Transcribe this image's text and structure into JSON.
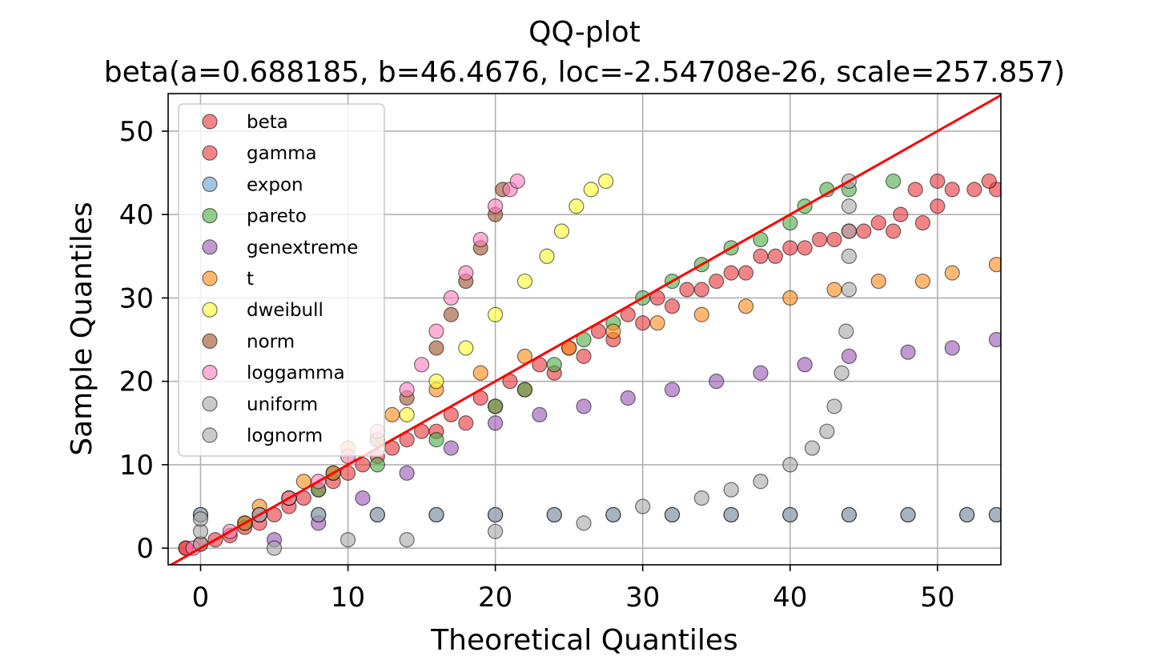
{
  "chart_data": {
    "type": "scatter",
    "title": "QQ-plot",
    "subtitle": "beta(a=0.688185, b=46.4676, loc=-2.54708e-26, scale=257.857)",
    "xlabel": "Theoretical Quantiles",
    "ylabel": "Sample Quantiles",
    "xlim": [
      -2.2,
      54.3
    ],
    "ylim": [
      -2,
      54.5
    ],
    "xticks": [
      0,
      10,
      20,
      30,
      40,
      50
    ],
    "yticks": [
      0,
      10,
      20,
      30,
      40,
      50
    ],
    "xtick_labels": [
      "0",
      "10",
      "20",
      "30",
      "40",
      "50"
    ],
    "ytick_labels": [
      "0",
      "10",
      "20",
      "30",
      "40",
      "50"
    ],
    "grid": true,
    "legend_position": "top-left",
    "reference_line": {
      "color": "#ff0000",
      "points": [
        [
          -2.2,
          -2.2
        ],
        [
          54.3,
          54.3
        ]
      ]
    },
    "series": [
      {
        "name": "beta",
        "color": "#e8383d",
        "points": [
          [
            -1,
            0
          ],
          [
            0,
            0.5
          ],
          [
            2,
            1.5
          ],
          [
            4,
            3
          ],
          [
            6,
            5
          ],
          [
            8,
            7
          ],
          [
            10,
            9
          ],
          [
            12,
            11
          ],
          [
            14,
            13
          ],
          [
            16,
            14
          ],
          [
            18,
            15
          ],
          [
            20,
            17
          ],
          [
            22,
            19
          ],
          [
            24,
            21
          ],
          [
            26,
            23
          ],
          [
            28,
            25
          ],
          [
            30,
            27
          ],
          [
            32,
            29
          ],
          [
            34,
            31
          ],
          [
            36,
            33
          ],
          [
            38,
            35
          ],
          [
            40,
            36
          ],
          [
            42,
            37
          ],
          [
            44,
            38
          ],
          [
            46,
            39
          ],
          [
            47.5,
            40
          ],
          [
            48.5,
            43
          ],
          [
            50,
            41
          ],
          [
            51,
            43
          ],
          [
            52.5,
            43
          ],
          [
            54,
            43
          ]
        ]
      },
      {
        "name": "gamma",
        "color": "#e8383d",
        "points": [
          [
            -1,
            0
          ],
          [
            1,
            1
          ],
          [
            3,
            2.5
          ],
          [
            5,
            4
          ],
          [
            7,
            6
          ],
          [
            9,
            8
          ],
          [
            11,
            10
          ],
          [
            13,
            12
          ],
          [
            15,
            14
          ],
          [
            17,
            16
          ],
          [
            19,
            18
          ],
          [
            21,
            20
          ],
          [
            23,
            22
          ],
          [
            25,
            24
          ],
          [
            27,
            26
          ],
          [
            29,
            28
          ],
          [
            31,
            30
          ],
          [
            33,
            31
          ],
          [
            35,
            32
          ],
          [
            37,
            33
          ],
          [
            39,
            35
          ],
          [
            41,
            36
          ],
          [
            43,
            37
          ],
          [
            45,
            38
          ],
          [
            47,
            38
          ],
          [
            49,
            39
          ],
          [
            50,
            44
          ],
          [
            53.5,
            44
          ]
        ]
      },
      {
        "name": "expon",
        "color": "#6a9fd4",
        "points": [
          [
            0,
            4
          ],
          [
            4,
            4
          ],
          [
            8,
            4
          ],
          [
            12,
            4
          ],
          [
            16,
            4
          ],
          [
            20,
            4
          ],
          [
            24,
            4
          ],
          [
            28,
            4
          ],
          [
            32,
            4
          ],
          [
            36,
            4
          ],
          [
            40,
            4
          ],
          [
            44,
            4
          ],
          [
            48,
            4
          ],
          [
            52,
            4
          ],
          [
            54,
            4
          ]
        ]
      },
      {
        "name": "pareto",
        "color": "#4daf4a",
        "points": [
          [
            4,
            4
          ],
          [
            8,
            7
          ],
          [
            12,
            10
          ],
          [
            16,
            13
          ],
          [
            20,
            17
          ],
          [
            22,
            19
          ],
          [
            24,
            22
          ],
          [
            26,
            25
          ],
          [
            28,
            27
          ],
          [
            30,
            30
          ],
          [
            32,
            32
          ],
          [
            34,
            34
          ],
          [
            36,
            36
          ],
          [
            38,
            37
          ],
          [
            40,
            39
          ],
          [
            41,
            41
          ],
          [
            42.5,
            43
          ],
          [
            44,
            43
          ],
          [
            47,
            44
          ]
        ]
      },
      {
        "name": "genextreme",
        "color": "#9b59b6",
        "points": [
          [
            5,
            1
          ],
          [
            8,
            3
          ],
          [
            11,
            6
          ],
          [
            14,
            9
          ],
          [
            17,
            12
          ],
          [
            20,
            15
          ],
          [
            23,
            16
          ],
          [
            26,
            17
          ],
          [
            29,
            18
          ],
          [
            32,
            19
          ],
          [
            35,
            20
          ],
          [
            38,
            21
          ],
          [
            41,
            22
          ],
          [
            44,
            23
          ],
          [
            48,
            23.5
          ],
          [
            51,
            24
          ],
          [
            54,
            25
          ]
        ]
      },
      {
        "name": "t",
        "color": "#ff8c1a",
        "points": [
          [
            4,
            5
          ],
          [
            7,
            8
          ],
          [
            10,
            12
          ],
          [
            13,
            16
          ],
          [
            16,
            19
          ],
          [
            19,
            21
          ],
          [
            22,
            23
          ],
          [
            25,
            24
          ],
          [
            28,
            26
          ],
          [
            31,
            27
          ],
          [
            34,
            28
          ],
          [
            37,
            29
          ],
          [
            40,
            30
          ],
          [
            43,
            31
          ],
          [
            46,
            32
          ],
          [
            49,
            32
          ],
          [
            51,
            33
          ],
          [
            54,
            34
          ]
        ]
      },
      {
        "name": "dweibull",
        "color": "#ffff33",
        "points": [
          [
            3,
            3
          ],
          [
            6,
            6
          ],
          [
            9,
            9
          ],
          [
            12,
            13
          ],
          [
            14,
            16
          ],
          [
            16,
            20
          ],
          [
            18,
            24
          ],
          [
            20,
            28
          ],
          [
            22,
            32
          ],
          [
            23.5,
            35
          ],
          [
            24.5,
            38
          ],
          [
            25.5,
            41
          ],
          [
            26.5,
            43
          ],
          [
            27.5,
            44
          ]
        ]
      },
      {
        "name": "norm",
        "color": "#a0522d",
        "points": [
          [
            3,
            3
          ],
          [
            6,
            6
          ],
          [
            9,
            9
          ],
          [
            12,
            13
          ],
          [
            14,
            18
          ],
          [
            16,
            24
          ],
          [
            17,
            28
          ],
          [
            18,
            32
          ],
          [
            19,
            36
          ],
          [
            20,
            40
          ],
          [
            20.5,
            43
          ]
        ]
      },
      {
        "name": "loggamma",
        "color": "#ff7fbf",
        "points": [
          [
            -0.5,
            0
          ],
          [
            2,
            2
          ],
          [
            4,
            4
          ],
          [
            6,
            6
          ],
          [
            8,
            8
          ],
          [
            10,
            11
          ],
          [
            12,
            14
          ],
          [
            14,
            19
          ],
          [
            15,
            22
          ],
          [
            16,
            26
          ],
          [
            17,
            30
          ],
          [
            18,
            33
          ],
          [
            19,
            37
          ],
          [
            20,
            41
          ],
          [
            21,
            43
          ],
          [
            21.5,
            44
          ]
        ]
      },
      {
        "name": "uniform",
        "color": "#a9a9a9",
        "points": [
          [
            0,
            4
          ],
          [
            4,
            4
          ],
          [
            8,
            4
          ],
          [
            12,
            4
          ],
          [
            16,
            4
          ],
          [
            20,
            4
          ],
          [
            24,
            4
          ],
          [
            28,
            4
          ],
          [
            32,
            4
          ],
          [
            36,
            4
          ],
          [
            40,
            4
          ],
          [
            44,
            4
          ],
          [
            48,
            4
          ],
          [
            52,
            4
          ],
          [
            54,
            4
          ]
        ]
      },
      {
        "name": "lognorm",
        "color": "#a9a9a9",
        "points": [
          [
            0,
            0.5
          ],
          [
            0,
            2
          ],
          [
            0,
            3.5
          ],
          [
            5,
            0
          ],
          [
            10,
            1
          ],
          [
            14,
            1
          ],
          [
            20,
            2
          ],
          [
            26,
            3
          ],
          [
            30,
            5
          ],
          [
            34,
            6
          ],
          [
            36,
            7
          ],
          [
            38,
            8
          ],
          [
            40,
            10
          ],
          [
            41.5,
            12
          ],
          [
            42.5,
            14
          ],
          [
            43,
            17
          ],
          [
            43.5,
            21
          ],
          [
            43.8,
            26
          ],
          [
            44,
            31
          ],
          [
            44,
            35
          ],
          [
            44,
            38
          ],
          [
            44,
            41
          ],
          [
            44,
            44
          ]
        ]
      }
    ]
  }
}
